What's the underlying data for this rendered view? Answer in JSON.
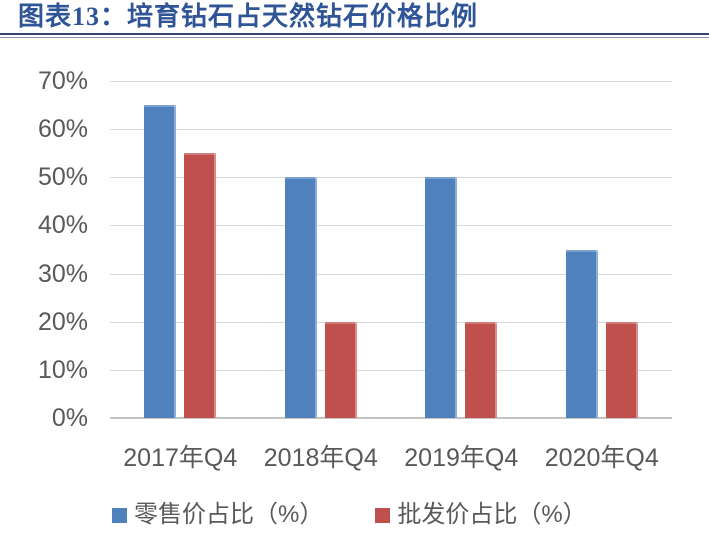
{
  "chart_data": {
    "type": "bar",
    "title": "图表13：培育钻石占天然钻石价格比例",
    "categories": [
      "2017年Q4",
      "2018年Q4",
      "2019年Q4",
      "2020年Q4"
    ],
    "series": [
      {
        "key": "retail",
        "name": "零售价占比（%）",
        "color": "#4F81BD",
        "values": [
          65,
          50,
          50,
          35
        ]
      },
      {
        "key": "wholesale",
        "name": "批发价占比（%）",
        "color": "#C0504D",
        "values": [
          55,
          20,
          20,
          20
        ]
      }
    ],
    "xlabel": "",
    "ylabel": "",
    "ylim": [
      0,
      70
    ],
    "ytick_step": 10,
    "ytick_suffix": "%",
    "grid": "horizontal-only",
    "legend_position": "bottom"
  },
  "colors": {
    "title_text": "#2F5597",
    "rule_dark": "#39436E",
    "rule_light": "#8A92B8",
    "gridline": "#D9D9D9",
    "axis_line": "#C3C3C3",
    "tick_text": "#595959",
    "series_retail": "#4F81BD",
    "series_wholesale": "#C0504D"
  }
}
